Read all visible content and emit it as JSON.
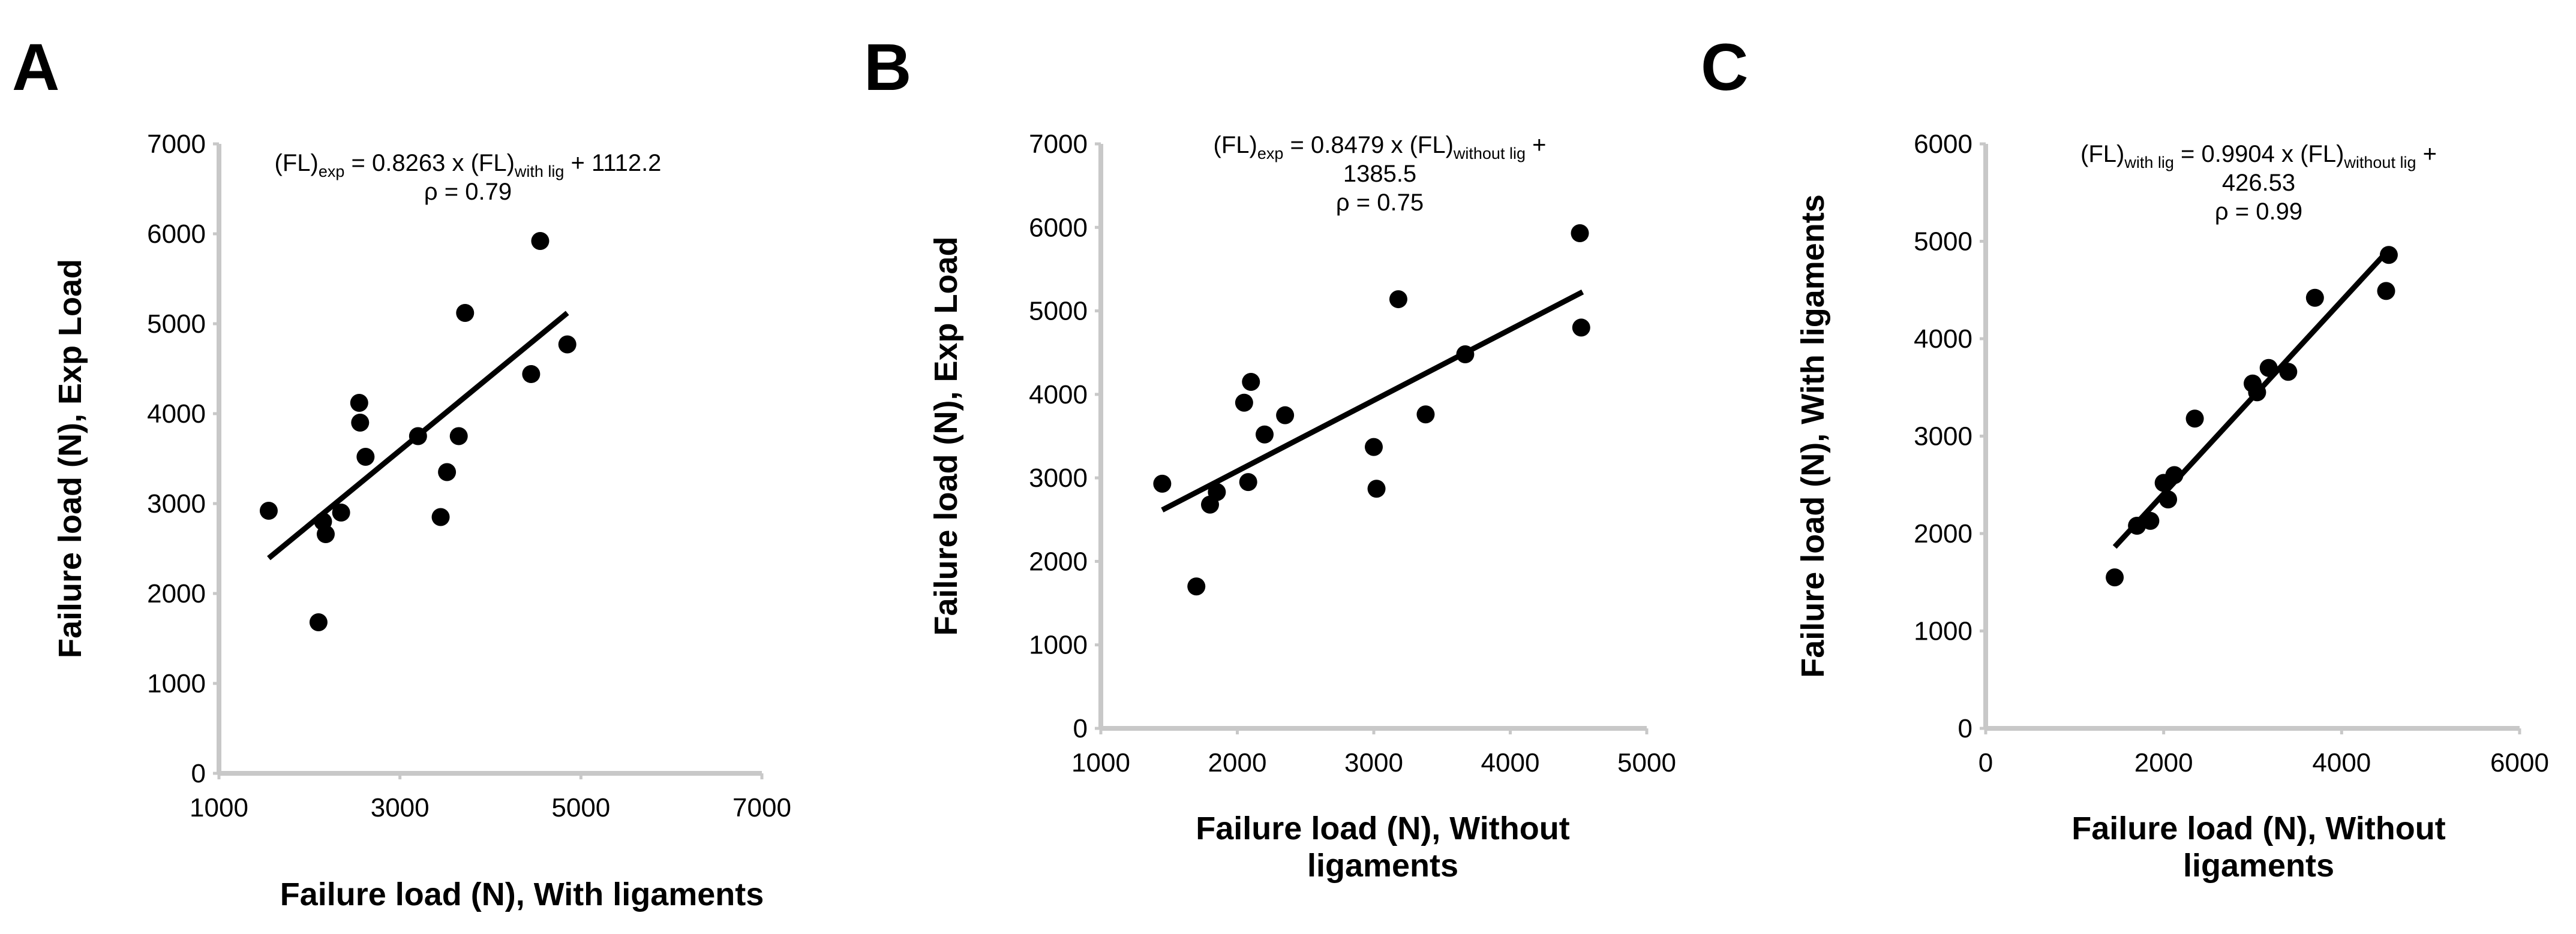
{
  "chart_data": [
    {
      "panel": "A",
      "type": "scatter",
      "xlabel": "Failure load (N), With ligaments",
      "ylabel": "Failure load (N), Exp Load",
      "xlim": [
        1000,
        7000
      ],
      "ylim": [
        0,
        7000
      ],
      "xticks": [
        "1000",
        "3000",
        "5000",
        "7000"
      ],
      "yticks": [
        "0",
        "1000",
        "2000",
        "3000",
        "4000",
        "5000",
        "6000",
        "7000"
      ],
      "equation": {
        "lhs": "(FL)",
        "lhs_sub": "exp",
        "mid": " = 0.8263 x (FL)",
        "mid_sub": "with lig",
        "rhs": " + 1112.2",
        "rho": "ρ = 0.79"
      },
      "fit": {
        "slope": 0.8263,
        "intercept": 1112.2,
        "x_range": [
          1550,
          4850
        ]
      },
      "points": [
        {
          "x": 1550,
          "y": 2920
        },
        {
          "x": 2100,
          "y": 1680
        },
        {
          "x": 2150,
          "y": 2800
        },
        {
          "x": 2180,
          "y": 2660
        },
        {
          "x": 2350,
          "y": 2900
        },
        {
          "x": 2550,
          "y": 4120
        },
        {
          "x": 2560,
          "y": 3900
        },
        {
          "x": 2620,
          "y": 3520
        },
        {
          "x": 3200,
          "y": 3750
        },
        {
          "x": 3450,
          "y": 2850
        },
        {
          "x": 3520,
          "y": 3350
        },
        {
          "x": 3650,
          "y": 3750
        },
        {
          "x": 3720,
          "y": 5120
        },
        {
          "x": 4450,
          "y": 4440
        },
        {
          "x": 4550,
          "y": 5920
        },
        {
          "x": 4850,
          "y": 4770
        }
      ]
    },
    {
      "panel": "B",
      "type": "scatter",
      "xlabel": "Failure load (N), Without ligaments",
      "ylabel": "Failure load (N), Exp Load",
      "xlim": [
        1000,
        5000
      ],
      "ylim": [
        0,
        7000
      ],
      "xticks": [
        "1000",
        "2000",
        "3000",
        "4000",
        "5000"
      ],
      "yticks": [
        "0",
        "1000",
        "2000",
        "3000",
        "4000",
        "5000",
        "6000",
        "7000"
      ],
      "equation": {
        "lhs": "(FL)",
        "lhs_sub": "exp",
        "mid": " = 0.8479 x (FL)",
        "mid_sub": "without lig",
        "rhs": " +",
        "line2": "1385.5",
        "rho": "ρ = 0.75"
      },
      "fit": {
        "slope": 0.8479,
        "intercept": 1385.5,
        "x_range": [
          1450,
          4530
        ]
      },
      "points": [
        {
          "x": 1450,
          "y": 2930
        },
        {
          "x": 1700,
          "y": 1700
        },
        {
          "x": 1800,
          "y": 2680
        },
        {
          "x": 1850,
          "y": 2830
        },
        {
          "x": 2050,
          "y": 3900
        },
        {
          "x": 2080,
          "y": 2950
        },
        {
          "x": 2100,
          "y": 4150
        },
        {
          "x": 2200,
          "y": 3520
        },
        {
          "x": 2350,
          "y": 3750
        },
        {
          "x": 3000,
          "y": 3370
        },
        {
          "x": 3020,
          "y": 2870
        },
        {
          "x": 3180,
          "y": 5140
        },
        {
          "x": 3380,
          "y": 3760
        },
        {
          "x": 3670,
          "y": 4480
        },
        {
          "x": 4510,
          "y": 5930
        },
        {
          "x": 4520,
          "y": 4800
        }
      ]
    },
    {
      "panel": "C",
      "type": "scatter",
      "xlabel": "Failure load (N), Without ligaments",
      "ylabel": "Failure load (N), With ligaments",
      "xlim": [
        0,
        6000
      ],
      "ylim": [
        0,
        6000
      ],
      "xticks": [
        "0",
        "2000",
        "4000",
        "6000"
      ],
      "yticks": [
        "0",
        "1000",
        "2000",
        "3000",
        "4000",
        "5000",
        "6000"
      ],
      "equation": {
        "lhs": "(FL)",
        "lhs_sub": "with lig",
        "mid": " = 0.9904 x (FL)",
        "mid_sub": "without lig",
        "rhs": " +",
        "line2": "426.53",
        "rho": "ρ = 0.99"
      },
      "fit": {
        "slope": 0.9904,
        "intercept": 426.53,
        "x_range": [
          1450,
          4530
        ]
      },
      "points": [
        {
          "x": 1450,
          "y": 1550
        },
        {
          "x": 1700,
          "y": 2080
        },
        {
          "x": 1850,
          "y": 2130
        },
        {
          "x": 2000,
          "y": 2520
        },
        {
          "x": 2050,
          "y": 2350
        },
        {
          "x": 2120,
          "y": 2600
        },
        {
          "x": 2350,
          "y": 3180
        },
        {
          "x": 3000,
          "y": 3540
        },
        {
          "x": 3050,
          "y": 3450
        },
        {
          "x": 3180,
          "y": 3700
        },
        {
          "x": 3400,
          "y": 3660
        },
        {
          "x": 3700,
          "y": 4420
        },
        {
          "x": 4500,
          "y": 4490
        },
        {
          "x": 4530,
          "y": 4860
        }
      ]
    }
  ]
}
